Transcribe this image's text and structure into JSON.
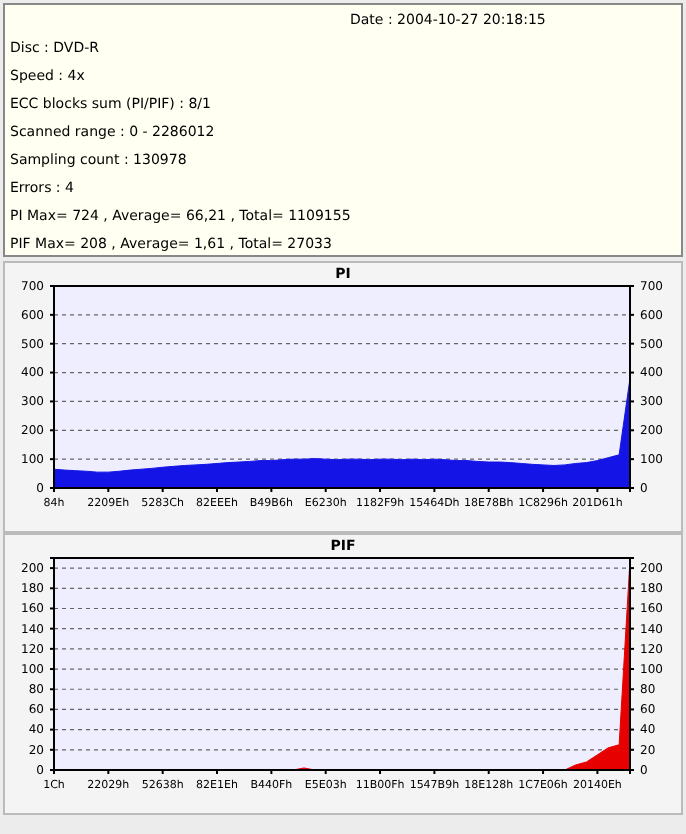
{
  "chart_data": [
    {
      "type": "other",
      "annotations": [
        "Date : 2004-10-27 20:18:15",
        "Disc : DVD-R",
        "Speed : 4x",
        "ECC blocks sum (PI/PIF) : 8/1",
        "Scanned range : 0 - 2286012",
        "Sampling count : 130978",
        "Errors : 4",
        "PI Max= 724 , Average= 66,21 , Total= 1109155",
        "PIF Max= 208 , Average= 1,61 , Total= 27033"
      ]
    },
    {
      "type": "area",
      "title": "PI",
      "color": "#1414e6",
      "categories": [
        "84h",
        null,
        null,
        null,
        null,
        "2209Eh",
        null,
        null,
        null,
        null,
        "5283Ch",
        null,
        null,
        null,
        null,
        "82EEEh",
        null,
        null,
        null,
        null,
        "B49B6h",
        null,
        null,
        null,
        null,
        "E6230h",
        null,
        null,
        null,
        null,
        "1182F9h",
        null,
        null,
        null,
        null,
        "15464Dh",
        null,
        null,
        null,
        null,
        "18E78Bh",
        null,
        null,
        null,
        null,
        "1C8296h",
        null,
        null,
        null,
        null,
        "201D61h",
        null,
        null,
        null
      ],
      "values": [
        65,
        62,
        60,
        58,
        55,
        55,
        58,
        62,
        65,
        68,
        72,
        75,
        78,
        80,
        82,
        85,
        88,
        90,
        92,
        95,
        95,
        98,
        100,
        100,
        102,
        100,
        98,
        100,
        100,
        98,
        100,
        100,
        98,
        100,
        98,
        100,
        98,
        95,
        95,
        92,
        90,
        90,
        88,
        85,
        82,
        80,
        78,
        80,
        85,
        88,
        95,
        105,
        115,
        380
      ],
      "ylim": [
        0,
        700
      ],
      "yticks": [
        0,
        100,
        200,
        300,
        400,
        500,
        600,
        700
      ],
      "y2lim": [
        0,
        700
      ],
      "y2ticks": [
        0,
        100,
        200,
        300,
        400,
        500,
        600,
        700
      ],
      "grid": "y"
    },
    {
      "type": "area",
      "title": "PIF",
      "color": "#e60000",
      "categories": [
        "1Ch",
        null,
        null,
        null,
        null,
        "22029h",
        null,
        null,
        null,
        null,
        "52638h",
        null,
        null,
        null,
        null,
        "82E1Eh",
        null,
        null,
        null,
        null,
        "B440Fh",
        null,
        null,
        null,
        null,
        "E5E03h",
        null,
        null,
        null,
        null,
        "11B00Fh",
        null,
        null,
        null,
        null,
        "1547B9h",
        null,
        null,
        null,
        null,
        "18E128h",
        null,
        null,
        null,
        null,
        "1C7E06h",
        null,
        null,
        null,
        null,
        "20140Eh",
        null,
        null,
        null
      ],
      "values": [
        0,
        0,
        0,
        0,
        0,
        0,
        0,
        0,
        0,
        0,
        0,
        0,
        0,
        0,
        0,
        0,
        0,
        0,
        0,
        0,
        0,
        0,
        0,
        2,
        0,
        0,
        0,
        0,
        0,
        0,
        0,
        0,
        0,
        0,
        0,
        0,
        0,
        0,
        0,
        0,
        0,
        0,
        0,
        0,
        0,
        0,
        0,
        0,
        5,
        8,
        15,
        22,
        25,
        208
      ],
      "ylim": [
        0,
        210
      ],
      "yticks": [
        0,
        20,
        40,
        60,
        80,
        100,
        120,
        140,
        160,
        180,
        200
      ],
      "y2lim": [
        0,
        210
      ],
      "y2ticks": [
        0,
        20,
        40,
        60,
        80,
        100,
        120,
        140,
        160,
        180,
        200
      ],
      "grid": "y"
    }
  ]
}
